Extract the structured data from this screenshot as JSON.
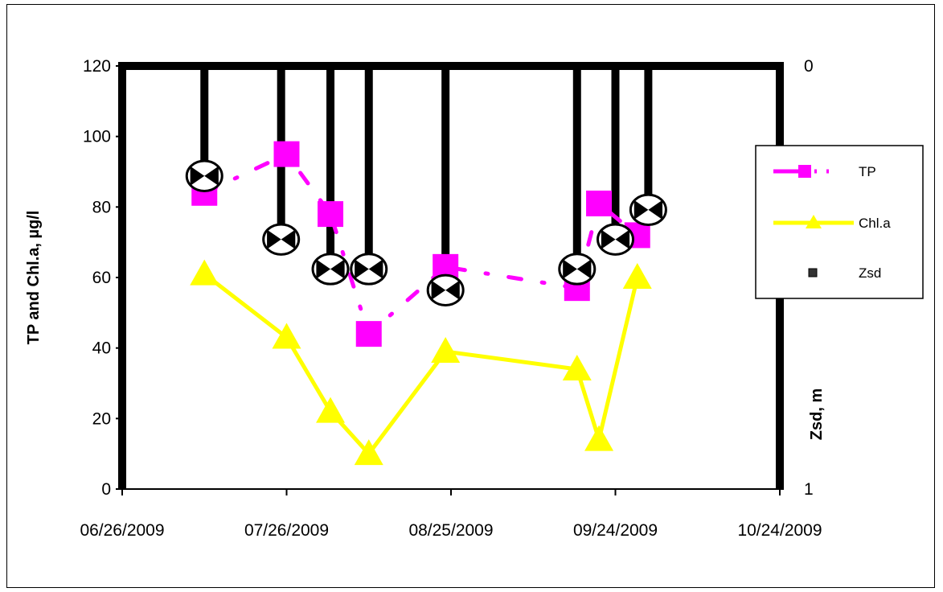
{
  "chart_data": {
    "type": "line",
    "title": "",
    "xlabel": "",
    "ylabel": "TP and Chl.a, µg/l",
    "y2label": "Zsd, m",
    "x_ticks": [
      "06/26/2009",
      "07/26/2009",
      "08/25/2009",
      "09/24/2009",
      "10/24/2009"
    ],
    "xlim": [
      "06/26/2009",
      "10/24/2009"
    ],
    "ylim": [
      0,
      120
    ],
    "y_ticks": [
      "0",
      "20",
      "40",
      "60",
      "80",
      "100",
      "120"
    ],
    "y2lim": [
      0,
      1
    ],
    "y2_inverted": true,
    "y2_ticks": [
      "0",
      "1"
    ],
    "legend_position": "right",
    "grid": false,
    "series": [
      {
        "name": "TP",
        "color": "#ff00ff",
        "marker": "square",
        "line_style": "dash-dot",
        "axis": "left",
        "x": [
          "07/11/2009",
          "07/26/2009",
          "08/03/2009",
          "08/10/2009",
          "08/24/2009",
          "09/17/2009",
          "09/21/2009",
          "09/28/2009"
        ],
        "values": [
          84,
          95,
          78,
          44,
          63,
          57,
          81,
          72
        ]
      },
      {
        "name": "Chl.a",
        "color": "#ffff00",
        "marker": "triangle",
        "line_style": "solid",
        "axis": "left",
        "x": [
          "07/11/2009",
          "07/26/2009",
          "08/03/2009",
          "08/10/2009",
          "08/24/2009",
          "09/17/2009",
          "09/21/2009",
          "09/28/2009"
        ],
        "values": [
          61,
          43,
          22,
          10,
          39,
          34,
          14,
          60
        ]
      },
      {
        "name": "Zsd",
        "color": "#000000",
        "marker": "circle",
        "line_style": "drop-bar",
        "axis": "right",
        "x": [
          "07/11/2009",
          "07/25/2009",
          "08/03/2009",
          "08/10/2009",
          "08/24/2009",
          "09/17/2009",
          "09/24/2009",
          "09/30/2009"
        ],
        "values": [
          0.26,
          0.41,
          0.48,
          0.48,
          0.53,
          0.48,
          0.41,
          0.34
        ]
      }
    ]
  }
}
